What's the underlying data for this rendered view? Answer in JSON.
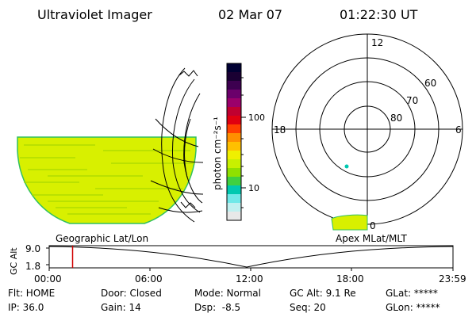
{
  "header": {
    "instrument": "Ultraviolet Imager",
    "date": "02 Mar 07",
    "time": "01:22:30 UT"
  },
  "colorbar": {
    "label": "photon cm⁻²s⁻¹",
    "ticks": [
      "100",
      "10"
    ],
    "colors": [
      "#000033",
      "#1a0033",
      "#3d0050",
      "#6b006b",
      "#9b006b",
      "#c00030",
      "#e00010",
      "#ff4000",
      "#ff9000",
      "#ffc000",
      "#f0f000",
      "#c8f000",
      "#90e000",
      "#40d040",
      "#00c8b0",
      "#70e8e8",
      "#c0f0f0",
      "#e8e8e8"
    ]
  },
  "left_map": {
    "label": "Geographic Lat/Lon"
  },
  "polar_plot": {
    "label": "Apex MLat/MLT",
    "mlt_labels": {
      "top": "12",
      "left": "18",
      "right": "6",
      "bottom": "0"
    },
    "lat_labels": [
      "60",
      "70",
      "80"
    ]
  },
  "altitude_strip": {
    "y_axis_label": "GC Alt",
    "y_ticks": [
      "9.0",
      "1.8"
    ],
    "x_ticks": [
      "00:00",
      "06:00",
      "12:00",
      "18:00",
      "23:59"
    ],
    "current_time_fraction": 0.058
  },
  "status": {
    "row1": [
      {
        "key": "flt",
        "text": "Flt: HOME"
      },
      {
        "key": "door",
        "text": "Door: Closed"
      },
      {
        "key": "mode",
        "text": "Mode: Normal"
      },
      {
        "key": "gcalt",
        "text": "GC Alt: 9.1 Re"
      },
      {
        "key": "glat",
        "text": "GLat: *****"
      }
    ],
    "row2": [
      {
        "key": "ip",
        "text": "IP: 36.0"
      },
      {
        "key": "gain",
        "text": "Gain: 14"
      },
      {
        "key": "dsp",
        "text": "Dsp:  -8.5"
      },
      {
        "key": "seq",
        "text": "Seq: 20"
      },
      {
        "key": "glon",
        "text": "GLon: *****"
      }
    ]
  }
}
